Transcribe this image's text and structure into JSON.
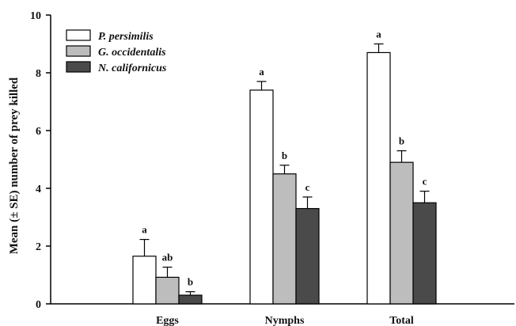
{
  "chart_data": {
    "type": "bar",
    "title": "",
    "xlabel": "",
    "ylabel": "Mean (± SE) number of prey killed",
    "ylim": [
      0,
      10
    ],
    "yticks": [
      0,
      2,
      4,
      6,
      8,
      10
    ],
    "categories": [
      "Eggs",
      "Nymphs",
      "Total"
    ],
    "series": [
      {
        "name": "P. persimilis",
        "color": "#ffffff",
        "values": [
          1.65,
          7.4,
          8.7
        ],
        "errors": [
          0.58,
          0.3,
          0.3
        ],
        "letters": [
          "a",
          "a",
          "a"
        ]
      },
      {
        "name": "G. occidentalis",
        "color": "#bdbdbd",
        "values": [
          0.92,
          4.5,
          4.9
        ],
        "errors": [
          0.35,
          0.3,
          0.4
        ],
        "letters": [
          "ab",
          "b",
          "b"
        ]
      },
      {
        "name": "N. californicus",
        "color": "#4a4a4a",
        "values": [
          0.3,
          3.3,
          3.5
        ],
        "errors": [
          0.12,
          0.4,
          0.4
        ],
        "letters": [
          "b",
          "c",
          "c"
        ]
      }
    ],
    "grid": false,
    "legend_position": "top-left"
  }
}
